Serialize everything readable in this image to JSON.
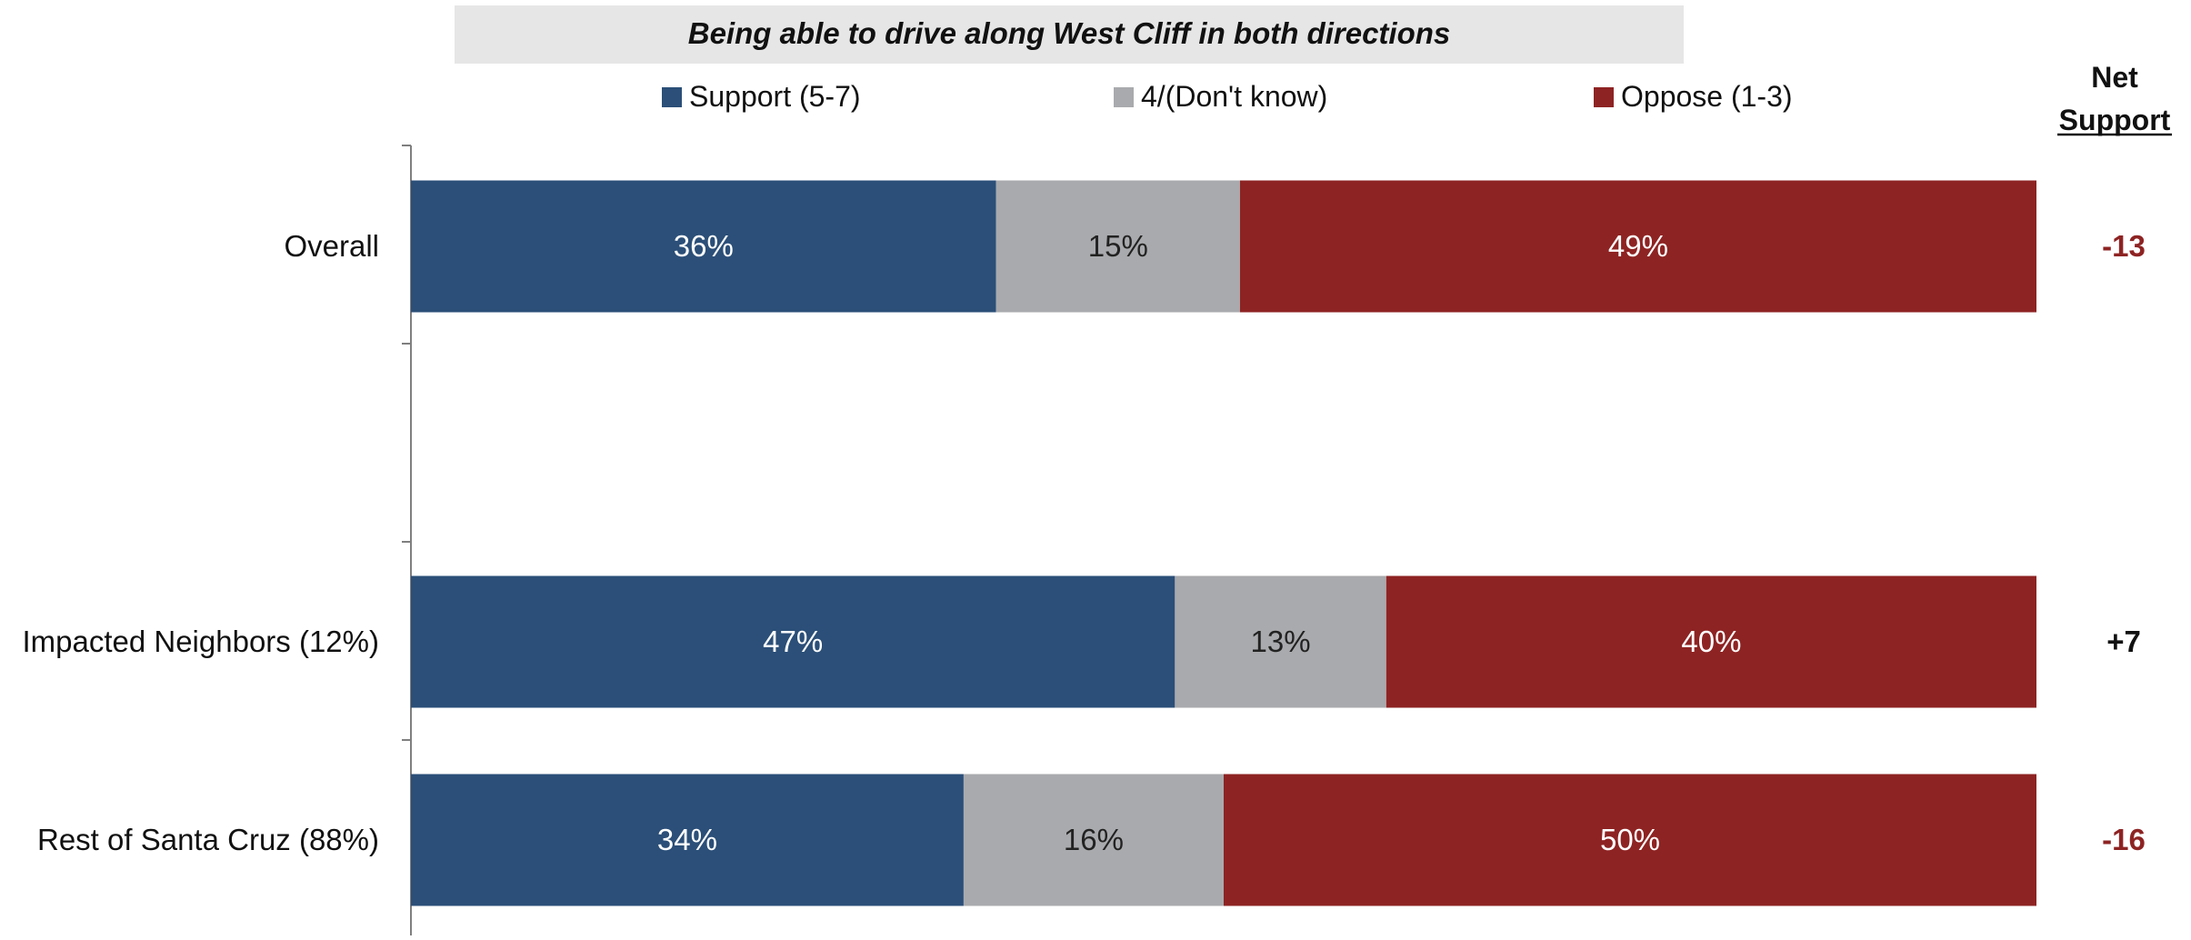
{
  "chart_data": {
    "type": "bar",
    "orientation": "horizontal",
    "stacked": true,
    "title": "Being able to drive along West Cliff in both directions",
    "categories": [
      "Overall",
      "",
      "Impacted Neighbors (12%)",
      "Rest of Santa Cruz (88%)"
    ],
    "series": [
      {
        "name": "Support (5-7)",
        "color": "#2b4f78",
        "values": [
          36,
          null,
          47,
          34
        ],
        "labels": [
          "36%",
          "",
          "47%",
          "34%"
        ]
      },
      {
        "name": "4/(Don't know)",
        "color": "#a9aaad",
        "values": [
          15,
          null,
          13,
          16
        ],
        "labels": [
          "15%",
          "",
          "13%",
          "16%"
        ]
      },
      {
        "name": "Oppose (1-3)",
        "color": "#8e2323",
        "values": [
          49,
          null,
          40,
          50
        ],
        "labels": [
          "49%",
          "",
          "40%",
          "50%"
        ]
      }
    ],
    "net_support": {
      "header": [
        "Net",
        "Support"
      ],
      "values": [
        "-13",
        "",
        "+7",
        "-16"
      ],
      "colors": [
        "#8e2323",
        "",
        "#111111",
        "#8e2323"
      ]
    },
    "xlim": [
      0,
      100
    ],
    "grid": false,
    "legend_position": "top"
  }
}
